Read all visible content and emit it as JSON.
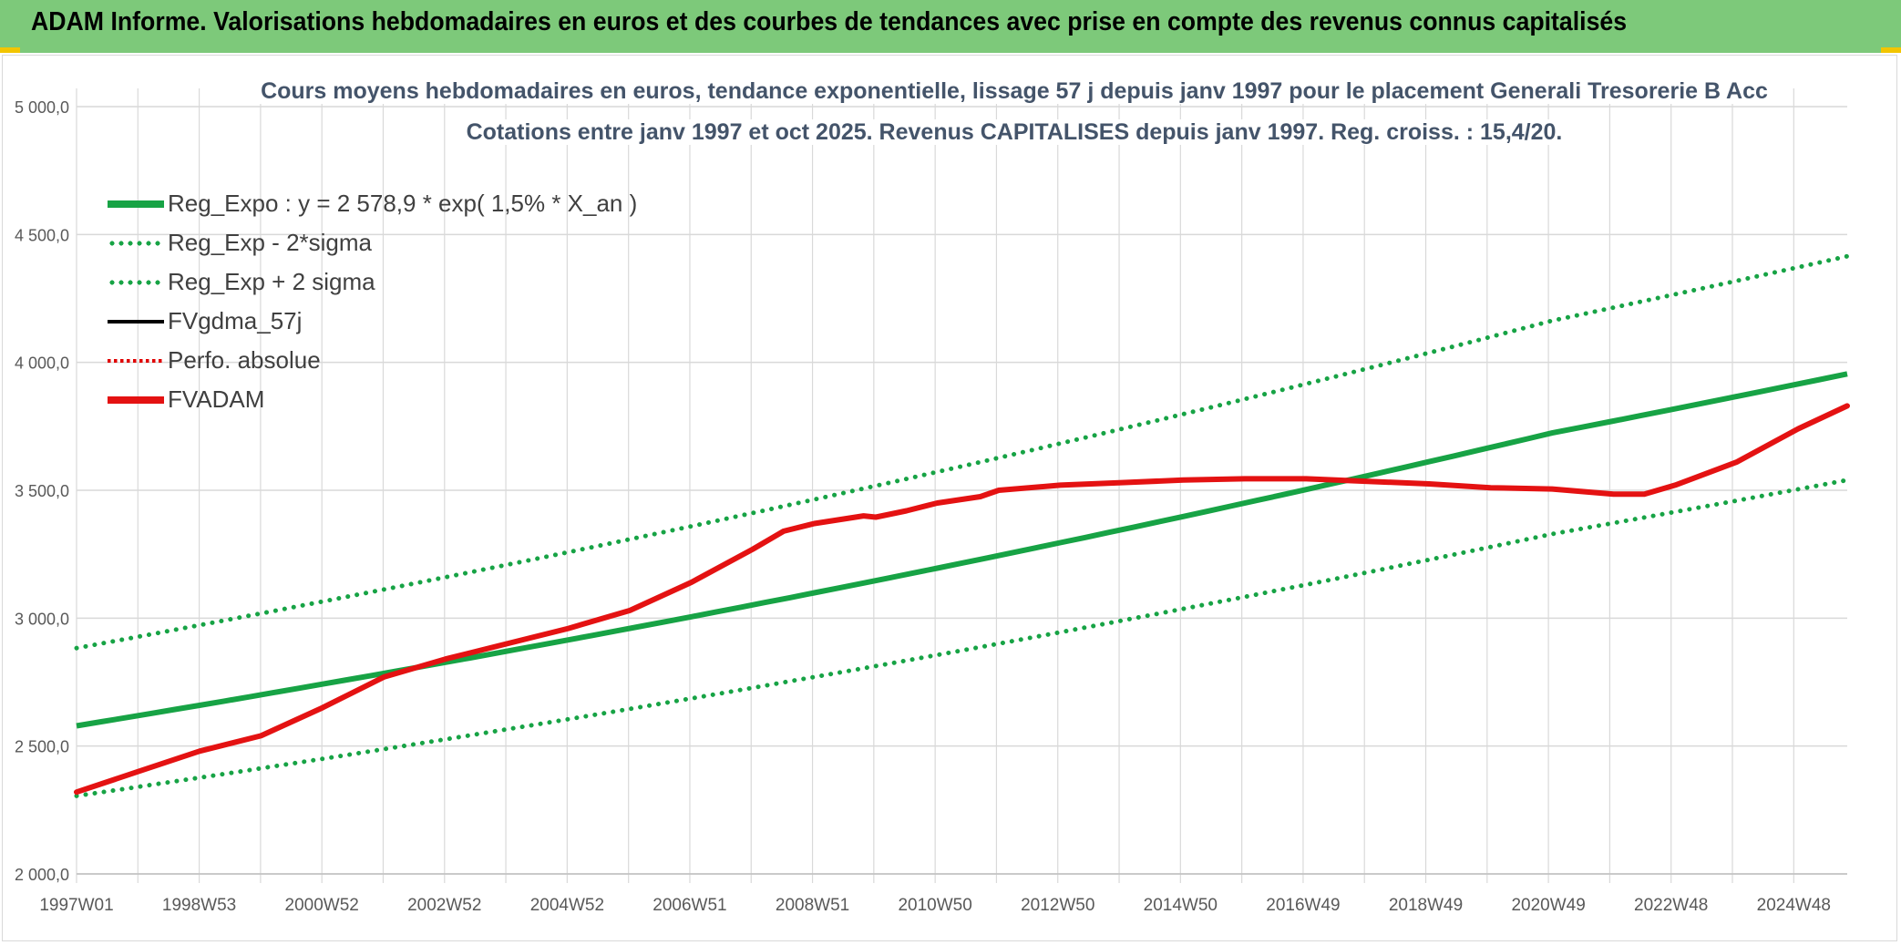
{
  "banner": {
    "title": "ADAM Informe. Valorisations hebdomadaires en euros et des courbes de tendances avec prise en compte des revenus connus capitalisés"
  },
  "colors": {
    "banner_bg": "#7dc97a",
    "reg_green": "#17a345",
    "fvadam_red": "#e41212",
    "gridline": "#d9d9d9",
    "title_text": "#44546a"
  },
  "chart_data": {
    "type": "line",
    "title": "Cours moyens hebdomadaires en euros, tendance exponentielle, lissage 57 j depuis janv 1997 pour le placement Generali Tresorerie B Acc",
    "subtitle": "Cotations entre janv 1997 et oct 2025. Revenus CAPITALISES depuis janv 1997. Reg. croiss. : 15,4/20.",
    "xlabel": "",
    "ylabel": "",
    "ylim": [
      2000,
      5000
    ],
    "y_ticks": [
      "2 000,0",
      "2 500,0",
      "3 000,0",
      "3 500,0",
      "4 000,0",
      "4 500,0",
      "5 000,0"
    ],
    "x_ticks": [
      "1997W01",
      "1998W53",
      "2000W52",
      "2002W52",
      "2004W52",
      "2006W51",
      "2008W51",
      "2010W50",
      "2012W50",
      "2014W50",
      "2016W49",
      "2018W49",
      "2020W49",
      "2022W48",
      "2024W48"
    ],
    "x_range_years": [
      1997.0,
      2025.8
    ],
    "grid": true,
    "legend_position": "top-left",
    "series": [
      {
        "name": "Reg_Expo : y = 2 578,9 * exp( 1,5% *  X_an )",
        "style": "solid-green",
        "x": [
          1997.0,
          2001.0,
          2005.0,
          2009.0,
          2013.0,
          2017.0,
          2021.0,
          2025.8
        ],
        "y": [
          2579,
          2742,
          2915,
          3099,
          3295,
          3503,
          3724,
          3955
        ]
      },
      {
        "name": "Reg_Exp - 2*sigma",
        "style": "dotted-green",
        "x": [
          1997.0,
          2001.0,
          2005.0,
          2009.0,
          2013.0,
          2017.0,
          2021.0,
          2025.8
        ],
        "y": [
          2305,
          2450,
          2605,
          2770,
          2945,
          3131,
          3329,
          3540
        ]
      },
      {
        "name": "Reg_Exp + 2 sigma",
        "style": "dotted-green",
        "x": [
          1997.0,
          2001.0,
          2005.0,
          2009.0,
          2013.0,
          2017.0,
          2021.0,
          2025.8
        ],
        "y": [
          2883,
          3065,
          3258,
          3464,
          3683,
          3916,
          4163,
          4415
        ]
      },
      {
        "name": "FVgdma_57j",
        "style": "solid-black",
        "x": [],
        "y": []
      },
      {
        "name": "Perfo. absolue",
        "style": "dotted-red",
        "x": [],
        "y": []
      },
      {
        "name": "FVADAM",
        "style": "solid-red",
        "x": [
          1997.0,
          1998.0,
          1999.0,
          2000.0,
          2001.0,
          2002.0,
          2003.0,
          2004.0,
          2005.0,
          2006.0,
          2007.0,
          2008.0,
          2008.5,
          2009.0,
          2009.8,
          2010.0,
          2010.5,
          2011.0,
          2011.7,
          2012.0,
          2013.0,
          2014.0,
          2015.0,
          2016.0,
          2017.0,
          2018.0,
          2019.0,
          2020.0,
          2021.0,
          2022.0,
          2022.5,
          2023.0,
          2024.0,
          2025.0,
          2025.8
        ],
        "y": [
          2320,
          2400,
          2480,
          2540,
          2650,
          2770,
          2840,
          2900,
          2960,
          3030,
          3140,
          3270,
          3340,
          3370,
          3400,
          3395,
          3420,
          3450,
          3475,
          3500,
          3520,
          3530,
          3540,
          3545,
          3545,
          3535,
          3525,
          3510,
          3505,
          3485,
          3485,
          3520,
          3610,
          3740,
          3830
        ]
      }
    ]
  }
}
